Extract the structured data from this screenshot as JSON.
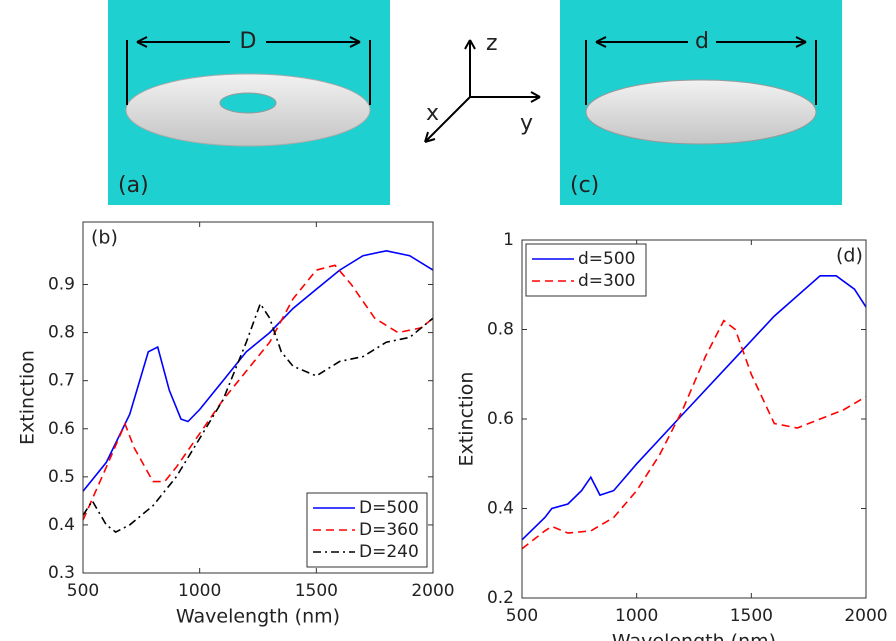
{
  "illustrations": {
    "panel_a": {
      "label": "(a)",
      "dimension": "D"
    },
    "panel_c": {
      "label": "(c)",
      "dimension": "d"
    },
    "axes": {
      "x": "x",
      "y": "y",
      "z": "z"
    }
  },
  "chart_data": [
    {
      "type": "line",
      "annotation": "(b)",
      "x_label": "Wavelength (nm)",
      "y_label": "Extinction",
      "xlim": [
        500,
        2000
      ],
      "xticks": [
        500,
        1000,
        1500,
        2000
      ],
      "ylim": [
        0.3,
        1.03
      ],
      "yticks": [
        0.3,
        0.4,
        0.5,
        0.6,
        0.7,
        0.8,
        0.9
      ],
      "grid": false,
      "legend": "lower-right",
      "series": [
        {
          "name": "D=500",
          "color": "#0000ff",
          "dash": "solid",
          "x": [
            500,
            600,
            700,
            780,
            820,
            870,
            920,
            950,
            1000,
            1100,
            1200,
            1300,
            1400,
            1500,
            1600,
            1700,
            1800,
            1900,
            2000
          ],
          "values": [
            0.47,
            0.53,
            0.63,
            0.76,
            0.77,
            0.68,
            0.62,
            0.615,
            0.64,
            0.7,
            0.76,
            0.8,
            0.85,
            0.89,
            0.93,
            0.96,
            0.97,
            0.96,
            0.93
          ]
        },
        {
          "name": "D=360",
          "color": "#ff0000",
          "dash": "dashed",
          "x": [
            500,
            600,
            680,
            720,
            800,
            850,
            900,
            1000,
            1100,
            1200,
            1300,
            1400,
            1500,
            1580,
            1650,
            1750,
            1850,
            1950,
            2000
          ],
          "values": [
            0.41,
            0.52,
            0.61,
            0.56,
            0.49,
            0.49,
            0.52,
            0.59,
            0.66,
            0.72,
            0.78,
            0.87,
            0.93,
            0.94,
            0.9,
            0.83,
            0.8,
            0.81,
            0.83
          ]
        },
        {
          "name": "D=240",
          "color": "#000000",
          "dash": "dashdot",
          "x": [
            500,
            540,
            600,
            640,
            700,
            800,
            900,
            1000,
            1100,
            1200,
            1260,
            1300,
            1350,
            1400,
            1500,
            1600,
            1700,
            1800,
            1900,
            2000
          ],
          "values": [
            0.42,
            0.45,
            0.4,
            0.385,
            0.4,
            0.44,
            0.5,
            0.58,
            0.66,
            0.78,
            0.86,
            0.83,
            0.76,
            0.73,
            0.71,
            0.74,
            0.75,
            0.78,
            0.79,
            0.83
          ]
        }
      ]
    },
    {
      "type": "line",
      "annotation": "(d)",
      "x_label": "Wavelength (nm)",
      "y_label": "Extinction",
      "xlim": [
        500,
        2000
      ],
      "xticks": [
        500,
        1000,
        1500,
        2000
      ],
      "ylim": [
        0.2,
        1
      ],
      "yticks": [
        0.2,
        0.4,
        0.6,
        0.8,
        1
      ],
      "grid": false,
      "legend": "upper-left",
      "series": [
        {
          "name": "d=500",
          "color": "#0000ff",
          "dash": "solid",
          "x": [
            500,
            600,
            630,
            700,
            760,
            800,
            840,
            900,
            1000,
            1200,
            1400,
            1600,
            1800,
            1870,
            1950,
            2000
          ],
          "values": [
            0.33,
            0.38,
            0.4,
            0.41,
            0.44,
            0.47,
            0.43,
            0.44,
            0.5,
            0.61,
            0.72,
            0.83,
            0.92,
            0.92,
            0.89,
            0.85
          ]
        },
        {
          "name": "d=300",
          "color": "#ff0000",
          "dash": "dashed",
          "x": [
            500,
            600,
            630,
            700,
            800,
            900,
            1000,
            1100,
            1200,
            1300,
            1380,
            1430,
            1500,
            1600,
            1700,
            1800,
            1900,
            2000
          ],
          "values": [
            0.31,
            0.35,
            0.36,
            0.345,
            0.35,
            0.38,
            0.44,
            0.52,
            0.62,
            0.74,
            0.82,
            0.8,
            0.7,
            0.59,
            0.58,
            0.6,
            0.62,
            0.65
          ]
        }
      ]
    }
  ]
}
